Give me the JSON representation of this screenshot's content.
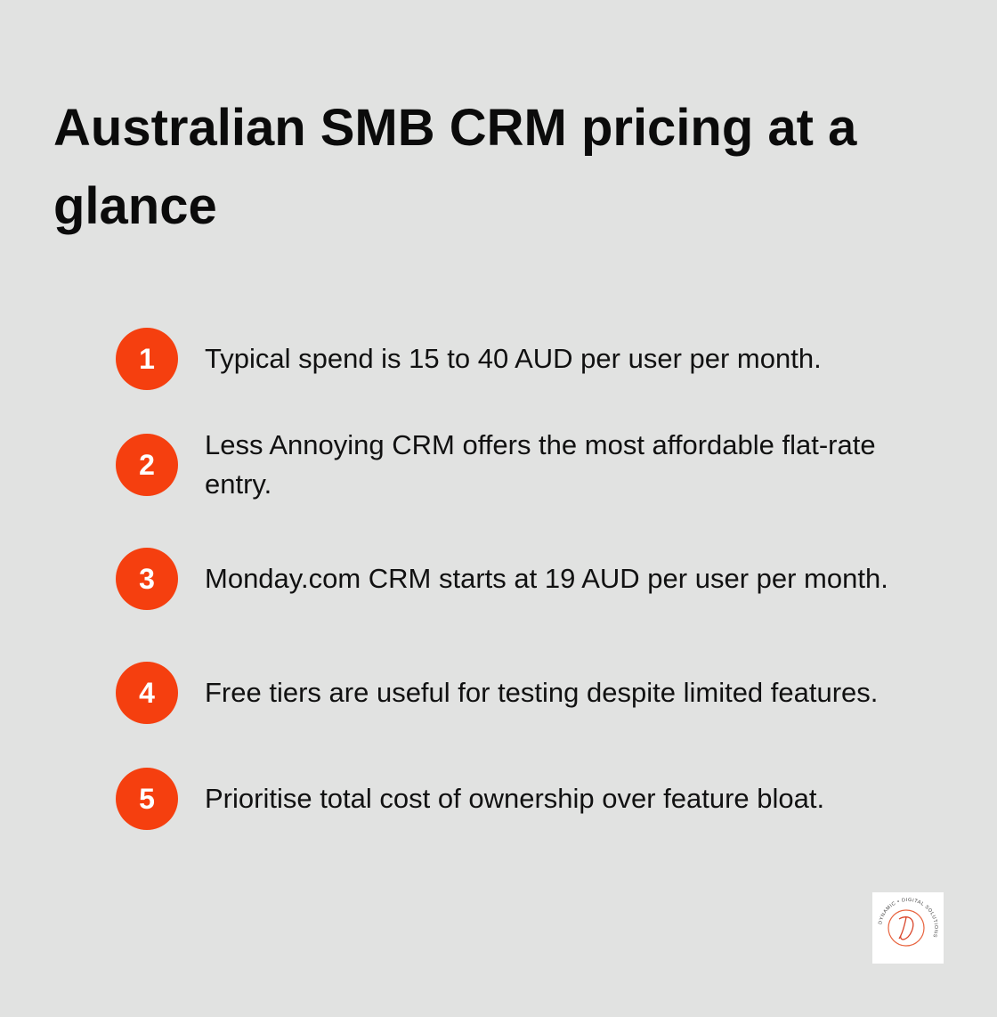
{
  "title": "Australian SMB CRM pricing at a glance",
  "items": [
    {
      "number": 1,
      "text": "Typical spend is 15 to 40 AUD per user per month."
    },
    {
      "number": 2,
      "text": "Less Annoying CRM offers the most affordable flat-rate entry."
    },
    {
      "number": 3,
      "text": "Monday.com CRM starts at 19 AUD per user per month."
    },
    {
      "number": 4,
      "text": "Free tiers are useful for testing despite limited features."
    },
    {
      "number": 5,
      "text": "Prioritise total cost of ownership over feature bloat."
    }
  ],
  "logo": {
    "text": "DYNAMIC • DIGITAL SOLUTIONS"
  }
}
